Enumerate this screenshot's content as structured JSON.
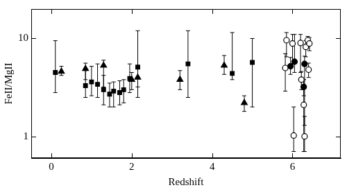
{
  "chart_data": {
    "type": "scatter",
    "x_label": "Redshift",
    "y_label": "FeII/MgII",
    "log": "y",
    "grid": false,
    "xlim": [
      -0.5,
      7.2
    ],
    "xticks": [
      0,
      2,
      4,
      6
    ],
    "ylim": [
      0.6,
      20
    ],
    "yticks": [
      1,
      10
    ],
    "series": [
      {
        "marker": "square",
        "color": "#000000",
        "x": [
          0.1,
          0.85,
          1.0,
          1.15,
          1.3,
          1.45,
          1.55,
          1.7,
          1.8,
          1.95,
          2.15,
          3.4,
          4.5,
          5.0
        ],
        "values": [
          4.5,
          3.3,
          3.6,
          3.4,
          3.0,
          2.7,
          2.9,
          2.8,
          3.0,
          3.9,
          5.1,
          5.5,
          4.4,
          5.7
        ],
        "y_low": [
          2.8,
          2.5,
          2.6,
          2.5,
          2.1,
          2.0,
          2.0,
          2.1,
          2.2,
          2.8,
          2.5,
          2.5,
          3.8,
          2.0
        ],
        "y_high": [
          9.5,
          4.7,
          5.2,
          5.5,
          4.2,
          3.5,
          3.6,
          3.7,
          3.8,
          5.5,
          12,
          12,
          11.5,
          10
        ]
      },
      {
        "marker": "triangle",
        "color": "#000000",
        "x": [
          0.25,
          0.85,
          1.3,
          2.0,
          2.15,
          3.2,
          4.3,
          4.8
        ],
        "values": [
          4.6,
          4.9,
          5.3,
          3.8,
          4.0,
          3.8,
          5.3,
          2.2
        ],
        "y_low": [
          4.2,
          3.8,
          3.2,
          3.0,
          3.2,
          3.0,
          4.3,
          1.8
        ],
        "y_high": [
          5.2,
          5.6,
          6.0,
          4.5,
          5.0,
          4.7,
          6.7,
          2.6
        ]
      },
      {
        "marker": "circle",
        "color": "#000000",
        "x": [
          5.95,
          6.05,
          6.28,
          6.3
        ],
        "values": [
          5.2,
          5.8,
          3.2,
          5.5
        ],
        "y_low": [
          4.3,
          4.5,
          2.6,
          1.3
        ],
        "y_high": [
          6.4,
          11.0,
          3.8,
          6.6
        ]
      },
      {
        "marker": "open_circle",
        "color": "#000000",
        "x": [
          5.82,
          5.85,
          6.0,
          6.03,
          6.2,
          6.22,
          6.28,
          6.3,
          6.33,
          6.38,
          6.42,
          6.4
        ],
        "values": [
          5.0,
          9.6,
          8.9,
          1.02,
          9.0,
          3.8,
          2.1,
          1.0,
          8.2,
          9.6,
          8.9,
          4.8
        ],
        "y_low": [
          2.9,
          6.5,
          5.5,
          0.7,
          4.5,
          3.0,
          0.7,
          0.7,
          6.5,
          8.0,
          7.5,
          4.0
        ],
        "y_high": [
          7.0,
          11.5,
          11.0,
          2.0,
          11.0,
          4.6,
          3.8,
          1.6,
          9.5,
          10.5,
          10.2,
          5.6
        ]
      }
    ]
  }
}
